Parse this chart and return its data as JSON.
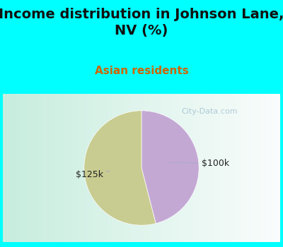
{
  "title": "Income distribution in Johnson Lane,\nNV (%)",
  "subtitle": "Asian residents",
  "title_fontsize": 14,
  "subtitle_fontsize": 11,
  "title_color": "#111111",
  "subtitle_color": "#cc6600",
  "background_color": "#00FFFF",
  "chart_bg_gradient_left": "#c8eedd",
  "chart_bg_gradient_right": "#f0f4ff",
  "slices": [
    {
      "label": "$100k",
      "value": 46,
      "color": "#C4A8D4"
    },
    {
      "label": "$125k",
      "value": 54,
      "color": "#C8CC90"
    }
  ],
  "label_fontsize": 9,
  "label_color": "#222222",
  "arrow_color": "#AAAACC",
  "watermark": "City-Data.com",
  "watermark_color": "#99BBCC",
  "watermark_fontsize": 8
}
